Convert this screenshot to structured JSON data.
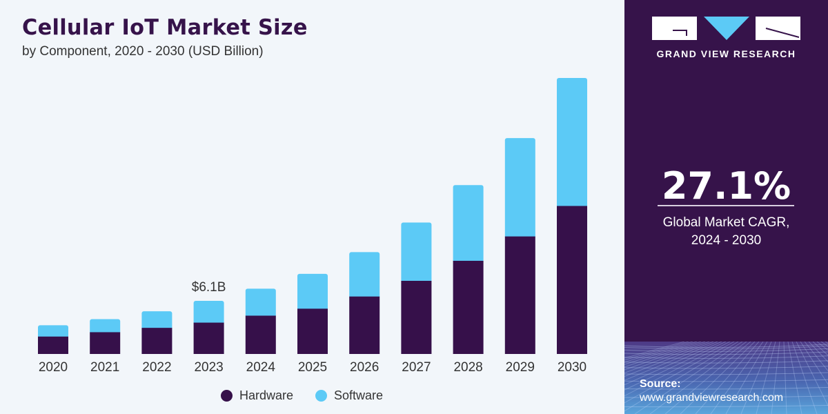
{
  "header": {
    "title": "Cellular IoT Market Size",
    "subtitle": "by Component, 2020 - 2030 (USD Billion)"
  },
  "sidebar": {
    "brand": "GRAND VIEW RESEARCH",
    "cagr_value": "27.1%",
    "cagr_label_line1": "Global Market CAGR,",
    "cagr_label_line2": "2024 - 2030",
    "source_label": "Source:",
    "source_url": "www.grandviewresearch.com"
  },
  "colors": {
    "hardware": "#36104a",
    "software": "#5ccaf6",
    "brand_purple": "#36134a",
    "logo_accent": "#5ccaf6"
  },
  "chart_data": {
    "type": "bar",
    "stacked": true,
    "title": "Cellular IoT Market Size",
    "subtitle": "by Component, 2020 - 2030 (USD Billion)",
    "xlabel": "",
    "ylabel": "",
    "categories": [
      "2020",
      "2021",
      "2022",
      "2023",
      "2024",
      "2025",
      "2026",
      "2027",
      "2028",
      "2029",
      "2030"
    ],
    "series": [
      {
        "name": "Hardware",
        "values": [
          2.0,
          2.5,
          3.0,
          3.6,
          4.4,
          5.2,
          6.6,
          8.4,
          10.7,
          13.5,
          17.0
        ]
      },
      {
        "name": "Software",
        "values": [
          1.3,
          1.5,
          1.9,
          2.5,
          3.1,
          4.0,
          5.1,
          6.7,
          8.7,
          11.3,
          14.7
        ]
      }
    ],
    "totals": [
      3.3,
      4.0,
      4.9,
      6.1,
      7.5,
      9.2,
      11.7,
      15.1,
      19.4,
      24.8,
      31.7
    ],
    "annotations": [
      {
        "category": "2023",
        "text": "$6.1B"
      }
    ],
    "ylim": [
      0,
      33
    ],
    "grid": false,
    "y_axis_visible": false,
    "legend": {
      "position": "bottom-center",
      "entries": [
        "Hardware",
        "Software"
      ]
    }
  }
}
